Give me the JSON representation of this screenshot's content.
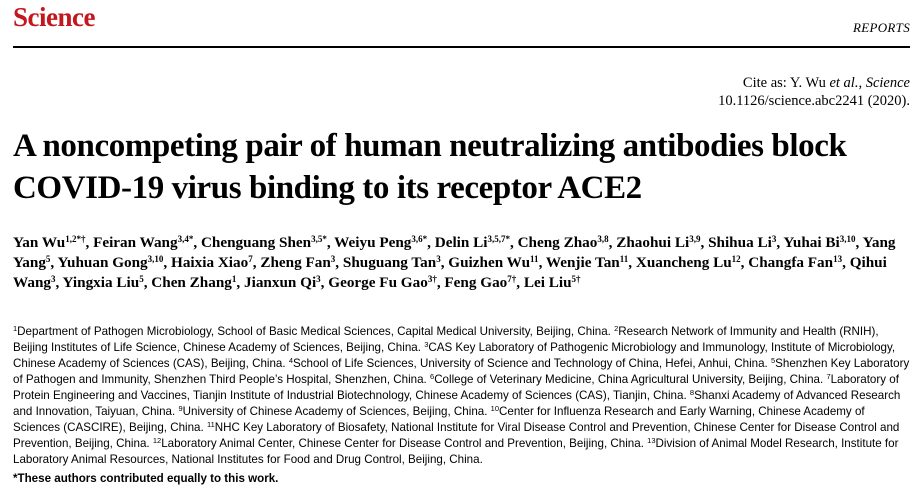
{
  "header": {
    "logo": "Science",
    "section": "REPORTS"
  },
  "cite": {
    "prefix": "Cite as: Y. Wu ",
    "etal": "et al.",
    "comma": ", ",
    "journal": "Science",
    "doi": "10.1126/science.abc2241 (2020)."
  },
  "title": "A noncompeting pair of human neutralizing antibodies block COVID-19 virus binding to its receptor ACE2",
  "authors": [
    {
      "name": "Yan Wu",
      "sup": "1,2*†"
    },
    {
      "name": "Feiran Wang",
      "sup": "3,4*"
    },
    {
      "name": "Chenguang Shen",
      "sup": "3,5*"
    },
    {
      "name": "Weiyu Peng",
      "sup": "3,6*"
    },
    {
      "name": "Delin Li",
      "sup": "3,5,7*"
    },
    {
      "name": "Cheng Zhao",
      "sup": "3,8"
    },
    {
      "name": "Zhaohui Li",
      "sup": "3,9"
    },
    {
      "name": "Shihua Li",
      "sup": "3"
    },
    {
      "name": "Yuhai Bi",
      "sup": "3,10"
    },
    {
      "name": "Yang Yang",
      "sup": "5"
    },
    {
      "name": "Yuhuan Gong",
      "sup": "3,10"
    },
    {
      "name": "Haixia Xiao",
      "sup": "7"
    },
    {
      "name": "Zheng Fan",
      "sup": "3"
    },
    {
      "name": "Shuguang Tan",
      "sup": "3"
    },
    {
      "name": "Guizhen Wu",
      "sup": "11"
    },
    {
      "name": "Wenjie Tan",
      "sup": "11"
    },
    {
      "name": "Xuancheng Lu",
      "sup": "12"
    },
    {
      "name": "Changfa Fan",
      "sup": "13"
    },
    {
      "name": "Qihui Wang",
      "sup": "3"
    },
    {
      "name": "Yingxia Liu",
      "sup": "5"
    },
    {
      "name": "Chen Zhang",
      "sup": "1"
    },
    {
      "name": "Jianxun Qi",
      "sup": "3"
    },
    {
      "name": "George Fu Gao",
      "sup": "3†"
    },
    {
      "name": "Feng Gao",
      "sup": "7†"
    },
    {
      "name": "Lei Liu",
      "sup": "5†"
    }
  ],
  "affiliations": [
    {
      "num": "1",
      "text": "Department of Pathogen Microbiology, School of Basic Medical Sciences, Capital Medical University, Beijing, China."
    },
    {
      "num": "2",
      "text": "Research Network of Immunity and Health (RNIH), Beijing Institutes of Life Science, Chinese Academy of Sciences, Beijing, China."
    },
    {
      "num": "3",
      "text": "CAS Key Laboratory of Pathogenic Microbiology and Immunology, Institute of Microbiology, Chinese Academy of Sciences (CAS), Beijing, China."
    },
    {
      "num": "4",
      "text": "School of Life Sciences, University of Science and Technology of China, Hefei, Anhui, China."
    },
    {
      "num": "5",
      "text": "Shenzhen Key Laboratory of Pathogen and Immunity, Shenzhen Third People’s Hospital, Shenzhen, China."
    },
    {
      "num": "6",
      "text": "College of Veterinary Medicine, China Agricultural University, Beijing, China."
    },
    {
      "num": "7",
      "text": "Laboratory of Protein Engineering and Vaccines, Tianjin Institute of Industrial Biotechnology, Chinese Academy of Sciences (CAS), Tianjin, China."
    },
    {
      "num": "8",
      "text": "Shanxi Academy of Advanced Research and Innovation, Taiyuan, China."
    },
    {
      "num": "9",
      "text": "University of Chinese Academy of Sciences, Beijing, China."
    },
    {
      "num": "10",
      "text": "Center for Influenza Research and Early Warning, Chinese Academy of Sciences (CASCIRE), Beijing, China."
    },
    {
      "num": "11",
      "text": "NHC Key Laboratory of Biosafety, National Institute for Viral Disease Control and Prevention, Chinese Center for Disease Control and Prevention, Beijing, China."
    },
    {
      "num": "12",
      "text": "Laboratory Animal Center, Chinese Center for Disease Control and Prevention, Beijing, China."
    },
    {
      "num": "13",
      "text": "Division of Animal Model Research, Institute for Laboratory Animal Resources, National Institutes for Food and Drug Control, Beijing, China."
    }
  ],
  "footnote": "*These authors contributed equally to this work."
}
